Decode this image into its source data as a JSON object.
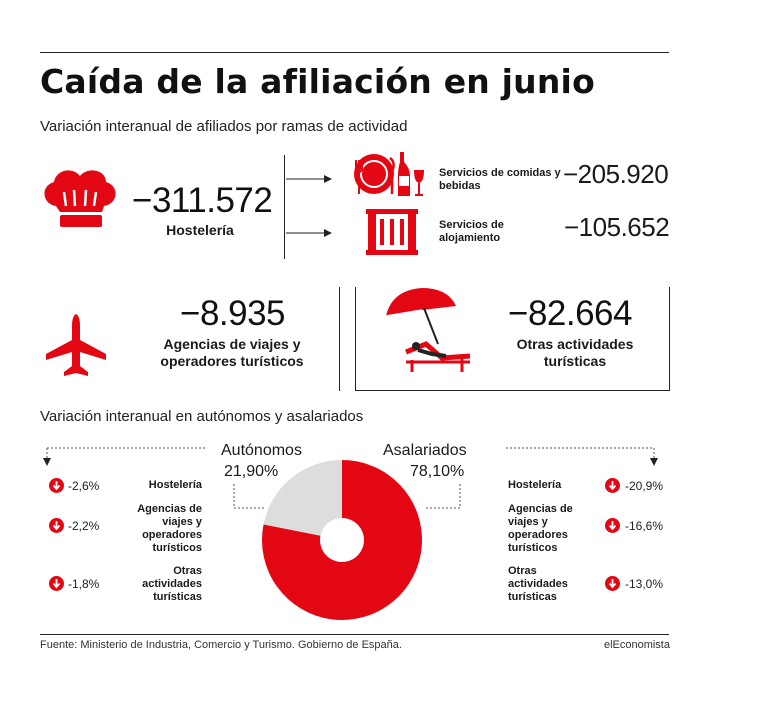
{
  "title": "Caída de la afiliación en junio",
  "subtitle": "Variación interanual de afiliados por ramas de actividad",
  "hosteleria": {
    "value": "−311.572",
    "label": "Hostelería"
  },
  "comidas": {
    "label": "Servicios de comidas y bebidas",
    "value": "−205.920"
  },
  "alojamiento": {
    "label": "Servicios de alojamiento",
    "value": "−105.652"
  },
  "agencias": {
    "value": "−8.935",
    "label": "Agencias de viajes y operadores turísticos"
  },
  "otras": {
    "value": "−82.664",
    "label": "Otras actividades turísticas"
  },
  "section2_title": "Variación interanual en autónomos y asalariados",
  "autonomos": {
    "name": "Autónomos",
    "share": "21,90%",
    "rows": [
      {
        "label": "Hostelería",
        "value": "-2,6%"
      },
      {
        "label": "Agencias de viajes y operadores turísticos",
        "value": "-2,2%"
      },
      {
        "label": "Otras actividades turísticas",
        "value": "-1,8%"
      }
    ]
  },
  "asalariados": {
    "name": "Asalariados",
    "share": "78,10%",
    "rows": [
      {
        "label": "Hostelería",
        "value": "-20,9%"
      },
      {
        "label": "Agencias de viajes y operadores turísticos",
        "value": "-16,6%"
      },
      {
        "label": "Otras actividades turísticas",
        "value": "-13,0%"
      }
    ]
  },
  "chart_data": {
    "type": "pie",
    "categories": [
      "Autónomos",
      "Asalariados"
    ],
    "values": [
      21.9,
      78.1
    ],
    "labels": [
      "21,90%",
      "78,10%"
    ],
    "colors": [
      "#dddddd",
      "#e30613"
    ]
  },
  "footer": {
    "source": "Fuente: Ministerio de Industria, Comercio y Turismo. Gobierno de España.",
    "brand": "elEconomista"
  },
  "colors": {
    "accent": "#e30613",
    "donut_light": "#dddddd",
    "text": "#1a1a1a"
  },
  "icons": [
    "chef-hat-icon",
    "dining-icon",
    "hotel-icon",
    "airplane-icon",
    "beach-umbrella-icon",
    "arrow-down-icon"
  ]
}
